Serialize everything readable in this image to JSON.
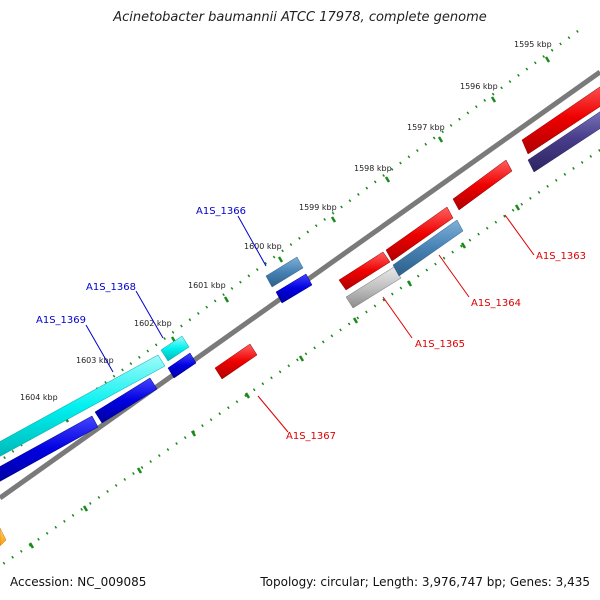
{
  "title": "Acinetobacter baumannii ATCC 17978, complete genome",
  "footer": {
    "accession": "Accession: NC_009085",
    "stats": "Topology: circular; Length: 3,976,747 bp; Genes: 3,435"
  },
  "colors": {
    "backbone": "#808080",
    "tick": "#1a8a1a",
    "forward_label": "#0000cc",
    "reverse_label": "#dd0000",
    "forward_leader": "#0000cc",
    "reverse_leader": "#dd0000"
  },
  "scale": {
    "ticks": [
      {
        "label": "1595 kbp"
      },
      {
        "label": "1596 kbp"
      },
      {
        "label": "1597 kbp"
      },
      {
        "label": "1598 kbp"
      },
      {
        "label": "1599 kbp"
      },
      {
        "label": "1600 kbp"
      },
      {
        "label": "1601 kbp"
      },
      {
        "label": "1602 kbp"
      },
      {
        "label": "1603 kbp"
      },
      {
        "label": "1604 kbp"
      }
    ]
  },
  "gene_labels": {
    "forward": [
      "A1S_1366",
      "A1S_1368",
      "A1S_1369"
    ],
    "reverse": [
      "A1S_1363",
      "A1S_1364",
      "A1S_1365",
      "A1S_1367"
    ]
  }
}
